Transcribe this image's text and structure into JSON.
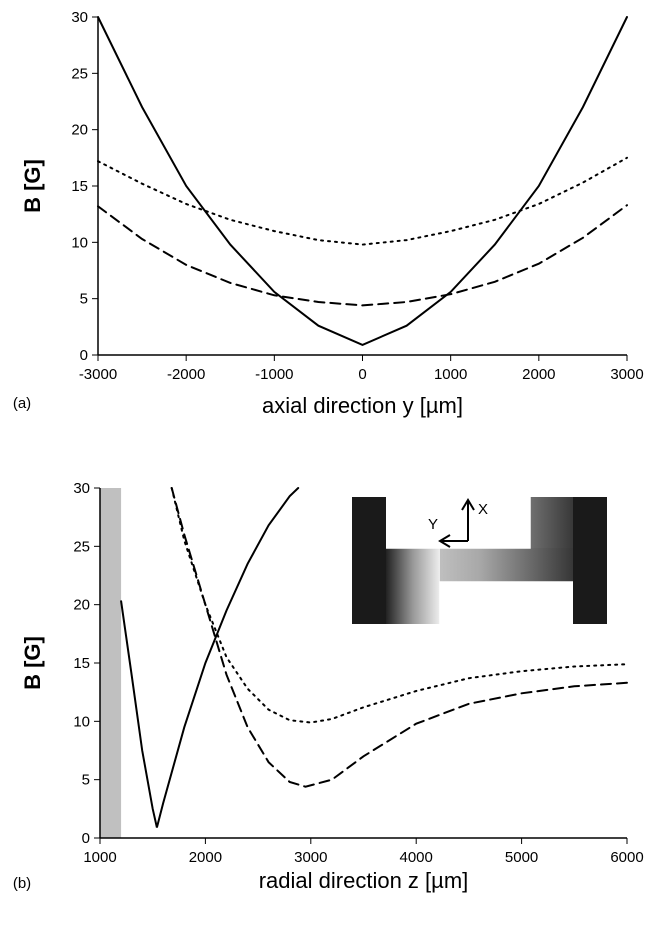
{
  "chart_data": [
    {
      "type": "line",
      "panel_label": "(a)",
      "ylabel": "B [G]",
      "xlabel": "axial direction  y  [µm]",
      "xlim": [
        -3000,
        3000
      ],
      "ylim": [
        0,
        30
      ],
      "xticks": [
        -3000,
        -2000,
        -1000,
        0,
        1000,
        2000,
        3000
      ],
      "yticks": [
        0,
        5,
        10,
        15,
        20,
        25,
        30
      ],
      "series": [
        {
          "color": "#000000",
          "dash": "solid",
          "x": [
            -3000,
            -2500,
            -2000,
            -1500,
            -1000,
            -500,
            0,
            500,
            1000,
            1500,
            2000,
            2500,
            3000
          ],
          "values": [
            30,
            22,
            15,
            9.8,
            5.6,
            2.6,
            0.9,
            2.6,
            5.6,
            9.8,
            15,
            22,
            30
          ]
        },
        {
          "color": "#000000",
          "dash": "dotted",
          "x": [
            -3000,
            -2500,
            -2000,
            -1500,
            -1000,
            -500,
            0,
            500,
            1000,
            1500,
            2000,
            2500,
            3000
          ],
          "values": [
            17.2,
            15.2,
            13.4,
            12,
            11,
            10.2,
            9.8,
            10.2,
            11,
            12,
            13.4,
            15.3,
            17.5
          ]
        },
        {
          "color": "#000000",
          "dash": "dashed",
          "x": [
            -3000,
            -2500,
            -2000,
            -1500,
            -1000,
            -500,
            0,
            500,
            1000,
            1500,
            2000,
            2500,
            3000
          ],
          "values": [
            13.2,
            10.3,
            8,
            6.4,
            5.3,
            4.7,
            4.4,
            4.7,
            5.4,
            6.5,
            8.1,
            10.4,
            13.3
          ]
        }
      ]
    },
    {
      "type": "line",
      "panel_label": "(b)",
      "ylabel": "B [G]",
      "xlabel": "radial direction  z  [µm]",
      "xlim": [
        1000,
        6000
      ],
      "ylim": [
        0,
        30
      ],
      "xticks": [
        1000,
        2000,
        3000,
        4000,
        5000,
        6000
      ],
      "yticks": [
        0,
        5,
        10,
        15,
        20,
        25,
        30
      ],
      "span": [
        1000,
        1200
      ],
      "span_color": "#c0c0c0",
      "annotations": [
        "Y",
        "X"
      ],
      "series": [
        {
          "color": "#000000",
          "dash": "solid",
          "x": [
            1200,
            1300,
            1400,
            1500,
            1540,
            1600,
            1800,
            2000,
            2200,
            2400,
            2600,
            2800,
            2880
          ],
          "values": [
            20.3,
            14,
            7.5,
            2.5,
            0.9,
            3,
            9.5,
            15,
            19.5,
            23.5,
            26.8,
            29.3,
            30
          ]
        },
        {
          "color": "#000000",
          "dash": "dotted",
          "x": [
            1680,
            1800,
            2000,
            2200,
            2400,
            2600,
            2800,
            3000,
            3200,
            3500,
            4000,
            4500,
            5000,
            5500,
            6000
          ],
          "values": [
            30,
            25.5,
            20,
            15.5,
            12.8,
            11,
            10.1,
            9.9,
            10.2,
            11.2,
            12.6,
            13.7,
            14.3,
            14.7,
            14.9
          ]
        },
        {
          "color": "#000000",
          "dash": "dashed",
          "x": [
            1680,
            1800,
            2000,
            2200,
            2400,
            2600,
            2800,
            2950,
            3200,
            3500,
            4000,
            4500,
            5000,
            5500,
            6000
          ],
          "values": [
            30,
            26,
            20,
            14,
            9.5,
            6.5,
            4.8,
            4.4,
            5,
            7,
            9.8,
            11.5,
            12.4,
            13,
            13.3
          ]
        }
      ]
    }
  ]
}
